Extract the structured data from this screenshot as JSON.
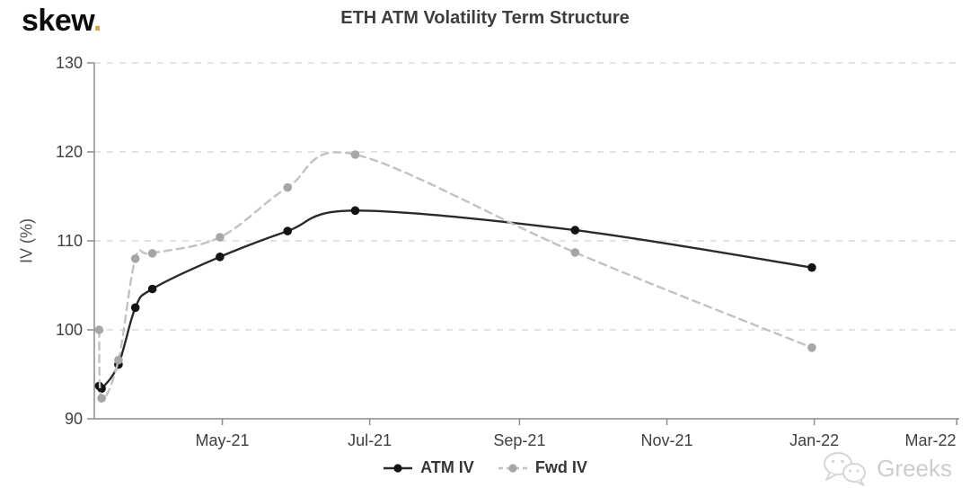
{
  "logo": {
    "text": "skew",
    "dot": "."
  },
  "watermark": {
    "text": "Greeks",
    "icon": "wechat-icon"
  },
  "colors": {
    "atm_line": "#2a2a2a",
    "atm_marker": "#131313",
    "fwd_line": "#c2c2c2",
    "fwd_marker": "#a6a6a6",
    "axis": "#8c8c8c",
    "grid": "#dadada",
    "tick_text": "#3f3f3f",
    "title_text": "#3d3d3d",
    "logo_dot": "#cfa14b",
    "watermark_text": "#cbcbcb"
  },
  "chart_data": {
    "type": "line",
    "title": "ETH ATM Volatility Term Structure",
    "xlabel": "",
    "ylabel": "IV (%)",
    "ylim": [
      90,
      130
    ],
    "y_ticks": [
      90,
      100,
      110,
      120,
      130
    ],
    "grid": "horizontal-dashed",
    "legend_position": "bottom-center",
    "x_domain": [
      "2021-03-09",
      "2022-03-02"
    ],
    "x_ticks": [
      {
        "date": "2021-05-01",
        "label": "May-21"
      },
      {
        "date": "2021-07-01",
        "label": "Jul-21"
      },
      {
        "date": "2021-09-01",
        "label": "Sep-21"
      },
      {
        "date": "2021-11-01",
        "label": "Nov-21"
      },
      {
        "date": "2022-01-01",
        "label": "Jan-22"
      },
      {
        "date": "2022-03-01",
        "label": "Mar-22"
      }
    ],
    "x": [
      "2021-03-11",
      "2021-03-12",
      "2021-03-19",
      "2021-03-26",
      "2021-04-02",
      "2021-04-30",
      "2021-05-28",
      "2021-06-25",
      "2021-09-24",
      "2021-12-31"
    ],
    "series": [
      {
        "name": "ATM IV",
        "style": "solid",
        "color_key": "atm",
        "values": [
          93.7,
          93.4,
          96.1,
          102.5,
          104.6,
          108.2,
          111.1,
          113.4,
          111.2,
          107.0
        ]
      },
      {
        "name": "Fwd IV",
        "style": "dashed",
        "color_key": "fwd",
        "values": [
          100.0,
          92.3,
          96.6,
          108.0,
          108.6,
          110.4,
          116.0,
          119.7,
          108.7,
          98.0
        ]
      }
    ]
  }
}
